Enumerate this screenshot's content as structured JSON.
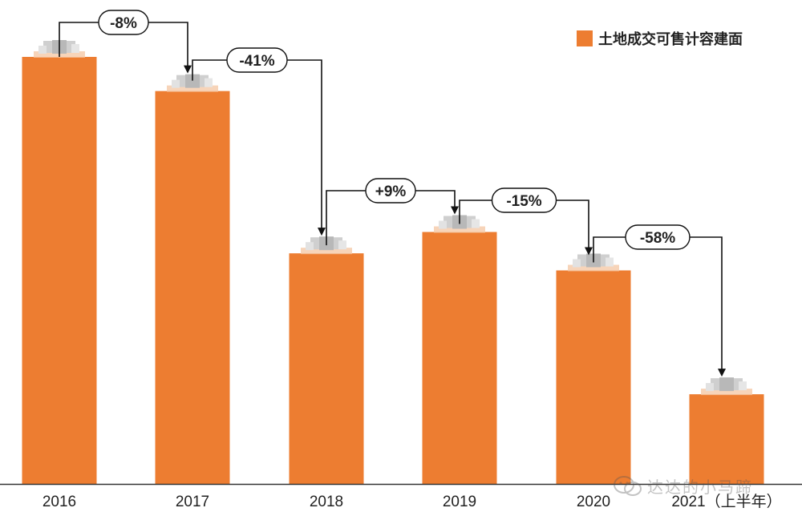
{
  "chart_data": {
    "type": "bar",
    "categories": [
      "2016",
      "2017",
      "2018",
      "2019",
      "2020",
      "2021（上半年）"
    ],
    "series": [
      {
        "name": "土地成交可售计容建面",
        "values": [
          100,
          92,
          54,
          59,
          50,
          21
        ]
      }
    ],
    "annotations": [
      "-8%",
      "-41%",
      "+9%",
      "-15%",
      "-58%"
    ],
    "ylim": [
      0,
      100
    ],
    "grid": false,
    "legend_position": "top-right",
    "colors": {
      "bar": "#ED7D31",
      "text": "#222222",
      "arrow": "#111111",
      "axis": "#333333"
    }
  },
  "watermark": {
    "text": "达达的小马蹄",
    "icon": "wechat-icon"
  }
}
